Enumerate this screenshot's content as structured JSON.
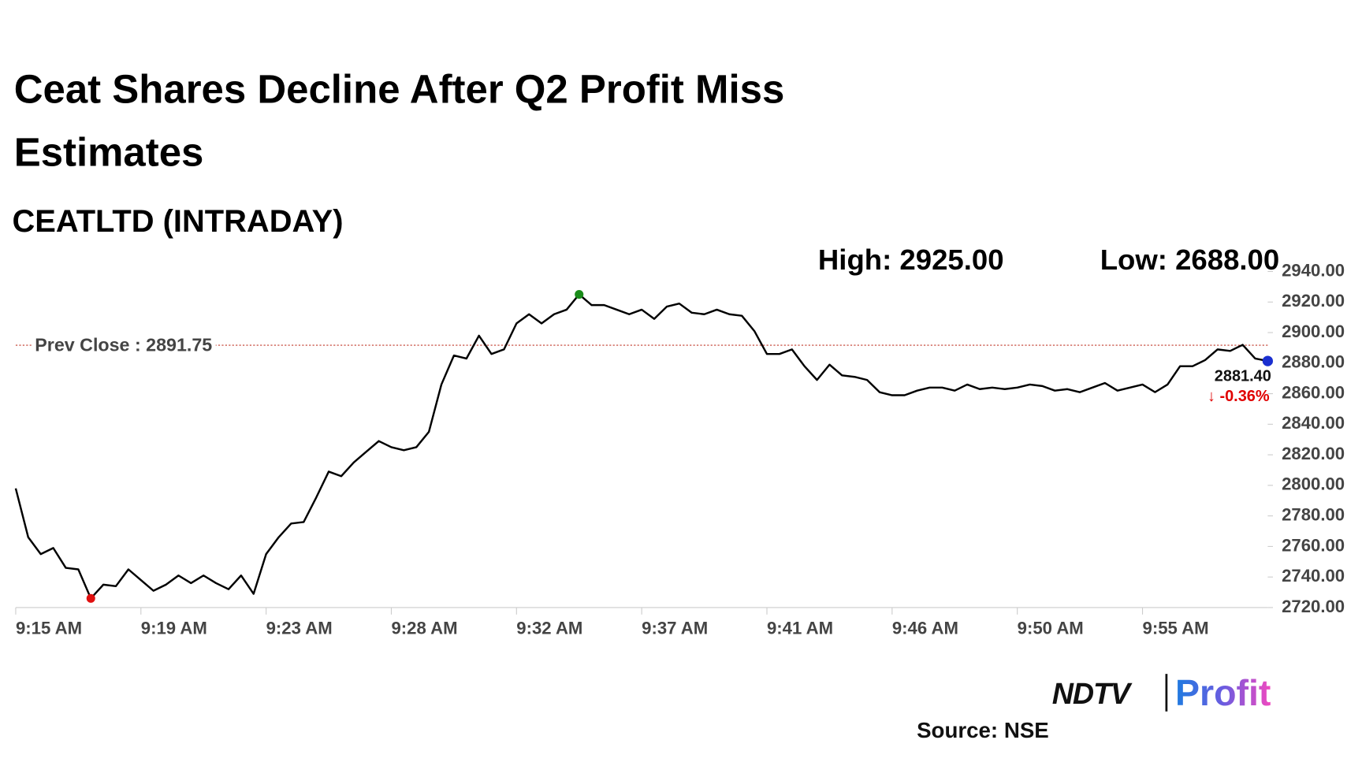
{
  "chart_data": {
    "type": "line",
    "title": "Ceat Shares Decline After Q2 Profit Miss Estimates",
    "subtitle": "CEATLTD (INTRADAY)",
    "high_label": "High: 2925.00",
    "low_label": "Low: 2688.00",
    "prev_close": 2891.75,
    "prev_close_label": "Prev Close : 2891.75",
    "prev_close_color": "#c0392b",
    "last_label": "2881.40",
    "change_label": "↓ -0.36%",
    "change_color": "#e00000",
    "high_index": 45,
    "low_index": 6,
    "high_color": "#1a8c1a",
    "low_color": "#e01010",
    "last_color": "#1a2fd0",
    "categories": [
      "9:15 AM",
      null,
      null,
      null,
      null,
      null,
      null,
      null,
      null,
      null,
      "9:19 AM",
      null,
      null,
      null,
      null,
      null,
      null,
      null,
      null,
      null,
      "9:23 AM",
      null,
      null,
      null,
      null,
      null,
      null,
      null,
      null,
      null,
      "9:28 AM",
      null,
      null,
      null,
      null,
      null,
      null,
      null,
      null,
      null,
      "9:32 AM",
      null,
      null,
      null,
      null,
      null,
      null,
      null,
      null,
      null,
      "9:37 AM",
      null,
      null,
      null,
      null,
      null,
      null,
      null,
      null,
      null,
      "9:41 AM",
      null,
      null,
      null,
      null,
      null,
      null,
      null,
      null,
      null,
      "9:46 AM",
      null,
      null,
      null,
      null,
      null,
      null,
      null,
      null,
      null,
      "9:50 AM",
      null,
      null,
      null,
      null,
      null,
      null,
      null,
      null,
      null,
      "9:55 AM",
      null,
      null,
      null,
      null,
      null,
      null,
      null,
      null,
      null,
      null
    ],
    "series": [
      {
        "color": "#000000",
        "values": [
          2798,
          2766,
          2755,
          2759,
          2746,
          2745,
          2726,
          2735,
          2734,
          2745,
          2738,
          2731,
          2735,
          2741,
          2736,
          2741,
          2736,
          2732,
          2741,
          2729,
          2755,
          2766,
          2775,
          2776,
          2792,
          2809,
          2806,
          2815,
          2822,
          2829,
          2825,
          2823,
          2825,
          2835,
          2866,
          2885,
          2883,
          2898,
          2886,
          2889,
          2906,
          2912,
          2906,
          2912,
          2915,
          2925,
          2918,
          2918,
          2915,
          2912,
          2915,
          2909,
          2917,
          2919,
          2913,
          2912,
          2915,
          2912,
          2911,
          2901,
          2886,
          2886,
          2889,
          2878,
          2869,
          2879,
          2872,
          2871,
          2869,
          2861,
          2859,
          2859,
          2862,
          2864,
          2864,
          2862,
          2866,
          2863,
          2864,
          2863,
          2864,
          2866,
          2865,
          2862,
          2863,
          2861,
          2864,
          2867,
          2862,
          2864,
          2866,
          2861,
          2866,
          2878,
          2878,
          2882,
          2889,
          2888,
          2892,
          2883,
          2881.4
        ]
      }
    ],
    "ylim": [
      2720,
      2940
    ],
    "yticks": [
      {
        "value": 2720,
        "label": "2720.00"
      },
      {
        "value": 2740,
        "label": "2740.00"
      },
      {
        "value": 2760,
        "label": "2760.00"
      },
      {
        "value": 2780,
        "label": "2780.00"
      },
      {
        "value": 2800,
        "label": "2800.00"
      },
      {
        "value": 2820,
        "label": "2820.00"
      },
      {
        "value": 2840,
        "label": "2840.00"
      },
      {
        "value": 2860,
        "label": "2860.00"
      },
      {
        "value": 2880,
        "label": "2880.00"
      },
      {
        "value": 2900,
        "label": "2900.00"
      },
      {
        "value": 2920,
        "label": "2920.00"
      },
      {
        "value": 2940,
        "label": "2940.00"
      }
    ],
    "source": "Source: NSE",
    "logo": {
      "brand": "NDTV",
      "product": "Profit"
    }
  }
}
